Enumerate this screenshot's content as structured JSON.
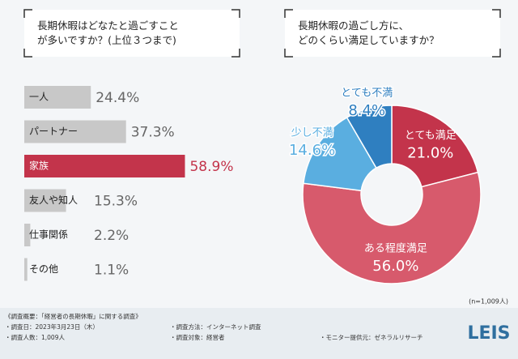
{
  "chart_data": [
    {
      "type": "hbar",
      "title": "長期休暇はどなたと過ごすことが多いですか？(上位３つまで)",
      "categories": [
        "一人",
        "パートナー",
        "家族",
        "友人や知人",
        "仕事関係",
        "その他"
      ],
      "values": [
        24.4,
        37.3,
        58.9,
        15.3,
        2.2,
        1.1
      ],
      "value_labels": [
        "24.4%",
        "37.3%",
        "58.9%",
        "15.3%",
        "2.2%",
        "1.1%"
      ],
      "colors": [
        "#c8c8c8",
        "#c8c8c8",
        "#c3344b",
        "#c8c8c8",
        "#c8c8c8",
        "#c8c8c8"
      ]
    },
    {
      "type": "donut",
      "title": "長期休暇の過ごし方に、どのくらい満足していますか？",
      "categories": [
        "とても満足",
        "ある程度満足",
        "少し不満",
        "とても不満"
      ],
      "values": [
        21.0,
        56.0,
        14.6,
        8.4
      ],
      "value_labels": [
        "21.0%",
        "56.0%",
        "14.6%",
        "8.4%"
      ],
      "colors": [
        "#c3344b",
        "#d75a6c",
        "#5aaee0",
        "#2f7fc0"
      ],
      "note": "(n=1,009人)"
    }
  ],
  "footer": {
    "heading": "《調査概要：「経営者の長期休暇」に関する調査》",
    "items": [
      "・調査日：2023年3月23日（木）",
      "・調査方法：インターネット調査",
      "・調査人数：1,009人",
      "・調査対象：経営者",
      "・モニター提供元：ゼネラルリサーチ"
    ],
    "logo": "LEIS"
  }
}
